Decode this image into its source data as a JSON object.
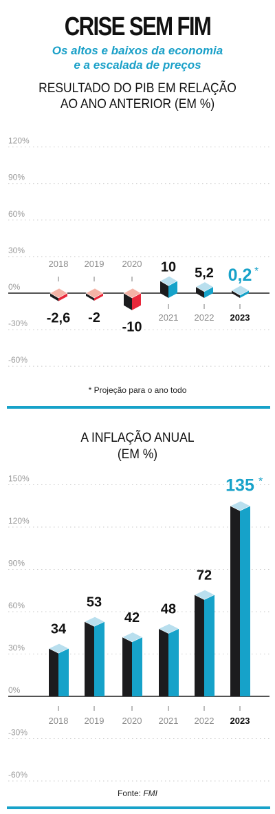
{
  "header": {
    "title": "CRISE SEM FIM",
    "subtitle_line1": "Os altos e baixos da economia",
    "subtitle_line2": "e a escalada de preços"
  },
  "chart_data": [
    {
      "type": "bar",
      "title": "RESULTADO DO PIB EM RELAÇÃO AO ANO ANTERIOR (EM %)",
      "title_line1": "RESULTADO DO PIB EM RELAÇÃO",
      "title_line2": "AO ANO ANTERIOR (EM %)",
      "categories": [
        "2018",
        "2019",
        "2020",
        "2021",
        "2022",
        "2023"
      ],
      "values": [
        -2.6,
        -2,
        -10,
        10,
        5.2,
        0.2
      ],
      "value_labels": [
        "-2,6",
        "-2",
        "-10",
        "10",
        "5,2",
        "0,2"
      ],
      "projected": [
        false,
        false,
        false,
        false,
        false,
        true
      ],
      "asterisk": "*",
      "yticks": [
        "120%",
        "90%",
        "60%",
        "30%",
        "0%",
        "-30%",
        "-60%"
      ],
      "ylim": [
        -60,
        120
      ],
      "grid": true,
      "note": "* Projeção para o ano todo",
      "colors": {
        "negative_top": "#f4b3a6",
        "negative_side": "#e8283a",
        "positive_top": "#b9dfee",
        "positive_side": "#16a2c9",
        "front": "#1c1c1e",
        "highlight": "#17a2c9"
      }
    },
    {
      "type": "bar",
      "title": "A INFLAÇÃO ANUAL (EM %)",
      "title_line1": "A INFLAÇÃO ANUAL",
      "title_line2": "(EM %)",
      "categories": [
        "2018",
        "2019",
        "2020",
        "2021",
        "2022",
        "2023"
      ],
      "values": [
        34,
        53,
        42,
        48,
        72,
        135
      ],
      "value_labels": [
        "34",
        "53",
        "42",
        "48",
        "72",
        "135"
      ],
      "projected": [
        false,
        false,
        false,
        false,
        false,
        true
      ],
      "asterisk": "*",
      "yticks": [
        "150%",
        "120%",
        "90%",
        "60%",
        "30%",
        "0%",
        "-30%",
        "-60%"
      ],
      "ylim": [
        -60,
        150
      ],
      "grid": true,
      "source_label": "Fonte: ",
      "source_name": "FMI",
      "colors": {
        "top": "#b9dfee",
        "side": "#16a2c9",
        "front": "#1c1c1e",
        "highlight": "#17a2c9"
      }
    }
  ]
}
